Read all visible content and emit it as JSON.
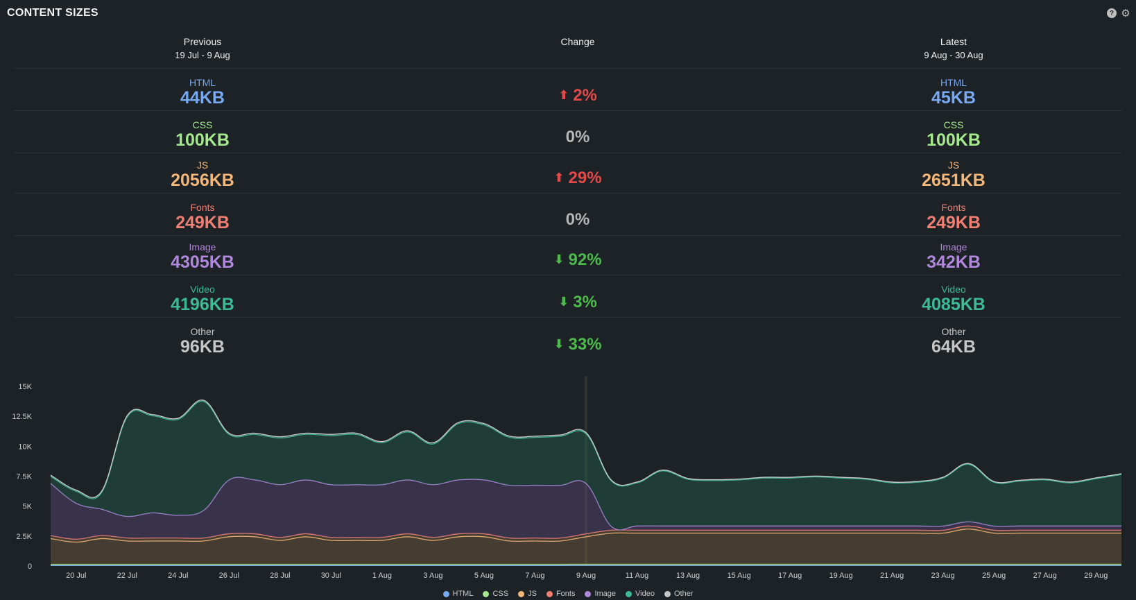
{
  "panel": {
    "title": "CONTENT SIZES",
    "help_icon": "help-icon",
    "settings_icon": "gear-icon"
  },
  "columns": {
    "previous": {
      "title": "Previous",
      "range": "19 Jul - 9 Aug"
    },
    "change": {
      "title": "Change"
    },
    "latest": {
      "title": "Latest",
      "range": "9 Aug - 30 Aug"
    }
  },
  "metrics": [
    {
      "label": "HTML",
      "color": "#78a8f0",
      "previous": "44KB",
      "latest": "45KB",
      "change": "2%",
      "direction": "up"
    },
    {
      "label": "CSS",
      "color": "#a5e88e",
      "previous": "100KB",
      "latest": "100KB",
      "change": "0%",
      "direction": "none"
    },
    {
      "label": "JS",
      "color": "#f4b77a",
      "previous": "2056KB",
      "latest": "2651KB",
      "change": "29%",
      "direction": "up"
    },
    {
      "label": "Fonts",
      "color": "#f07f72",
      "previous": "249KB",
      "latest": "249KB",
      "change": "0%",
      "direction": "none"
    },
    {
      "label": "Image",
      "color": "#b088dc",
      "previous": "4305KB",
      "latest": "342KB",
      "change": "92%",
      "direction": "down"
    },
    {
      "label": "Video",
      "color": "#3dbb96",
      "previous": "4196KB",
      "latest": "4085KB",
      "change": "3%",
      "direction": "down"
    },
    {
      "label": "Other",
      "color": "#c6c6c6",
      "previous": "96KB",
      "latest": "64KB",
      "change": "33%",
      "direction": "down"
    }
  ],
  "change_colors": {
    "up": "#e24a4a",
    "down": "#4cbb4c",
    "none": "#b5b5b5"
  },
  "chart_data": {
    "type": "area",
    "stacked": true,
    "x": [
      "19 Jul",
      "20 Jul",
      "21 Jul",
      "22 Jul",
      "23 Jul",
      "24 Jul",
      "25 Jul",
      "26 Jul",
      "27 Jul",
      "28 Jul",
      "29 Jul",
      "30 Jul",
      "31 Jul",
      "1 Aug",
      "2 Aug",
      "3 Aug",
      "4 Aug",
      "5 Aug",
      "6 Aug",
      "7 Aug",
      "8 Aug",
      "9 Aug",
      "10 Aug",
      "11 Aug",
      "12 Aug",
      "13 Aug",
      "14 Aug",
      "15 Aug",
      "16 Aug",
      "17 Aug",
      "18 Aug",
      "19 Aug",
      "20 Aug",
      "21 Aug",
      "22 Aug",
      "23 Aug",
      "24 Aug",
      "25 Aug",
      "26 Aug",
      "27 Aug",
      "28 Aug",
      "29 Aug",
      "30 Aug"
    ],
    "x_tick_labels": [
      "20 Jul",
      "22 Jul",
      "24 Jul",
      "26 Jul",
      "28 Jul",
      "30 Jul",
      "1 Aug",
      "3 Aug",
      "5 Aug",
      "7 Aug",
      "9 Aug",
      "11 Aug",
      "13 Aug",
      "15 Aug",
      "17 Aug",
      "19 Aug",
      "21 Aug",
      "23 Aug",
      "25 Aug",
      "27 Aug",
      "29 Aug"
    ],
    "y_tick_labels": [
      "0",
      "2.5K",
      "5K",
      "7.5K",
      "10K",
      "12.5K",
      "15K"
    ],
    "ylim": [
      0,
      15000
    ],
    "marker_date": "9 Aug",
    "grid": false,
    "legend_position": "bottom",
    "series": [
      {
        "name": "HTML",
        "color": "#78a8f0",
        "values": [
          44,
          44,
          44,
          44,
          44,
          44,
          44,
          44,
          44,
          44,
          44,
          44,
          44,
          44,
          44,
          44,
          44,
          44,
          44,
          44,
          44,
          45,
          45,
          45,
          45,
          45,
          45,
          45,
          45,
          45,
          45,
          45,
          45,
          45,
          45,
          45,
          45,
          45,
          45,
          45,
          45,
          45,
          45
        ]
      },
      {
        "name": "CSS",
        "color": "#a5e88e",
        "values": [
          100,
          100,
          100,
          100,
          100,
          100,
          100,
          100,
          100,
          100,
          100,
          100,
          100,
          100,
          100,
          100,
          100,
          100,
          100,
          100,
          100,
          100,
          100,
          100,
          100,
          100,
          100,
          100,
          100,
          100,
          100,
          100,
          100,
          100,
          100,
          100,
          100,
          100,
          100,
          100,
          100,
          100,
          100
        ]
      },
      {
        "name": "JS",
        "color": "#f4b77a",
        "values": [
          2150,
          1850,
          2150,
          1950,
          1950,
          1950,
          1950,
          2300,
          2300,
          2000,
          2300,
          2000,
          2000,
          2000,
          2300,
          2000,
          2300,
          2300,
          1950,
          1950,
          1950,
          2300,
          2600,
          2600,
          2600,
          2600,
          2600,
          2600,
          2600,
          2600,
          2600,
          2600,
          2600,
          2600,
          2600,
          2600,
          2950,
          2600,
          2600,
          2600,
          2600,
          2600,
          2600
        ]
      },
      {
        "name": "Fonts",
        "color": "#f07f72",
        "values": [
          249,
          249,
          249,
          249,
          249,
          249,
          249,
          249,
          249,
          249,
          249,
          249,
          249,
          249,
          249,
          249,
          249,
          249,
          249,
          249,
          249,
          249,
          249,
          249,
          249,
          249,
          249,
          249,
          249,
          249,
          249,
          249,
          249,
          249,
          249,
          249,
          249,
          249,
          249,
          249,
          249,
          249,
          249
        ]
      },
      {
        "name": "Image",
        "color": "#b088dc",
        "values": [
          4350,
          3000,
          2200,
          1800,
          2100,
          1900,
          2300,
          4500,
          4500,
          4400,
          4500,
          4400,
          4400,
          4400,
          4500,
          4400,
          4500,
          4500,
          4400,
          4400,
          4400,
          4200,
          300,
          350,
          350,
          350,
          350,
          350,
          350,
          350,
          350,
          350,
          350,
          350,
          350,
          350,
          350,
          350,
          350,
          350,
          350,
          350,
          350
        ]
      },
      {
        "name": "Video",
        "color": "#3dbb96",
        "values": [
          600,
          1000,
          1400,
          8300,
          8100,
          8000,
          9100,
          3800,
          3800,
          3900,
          3800,
          4100,
          4200,
          3500,
          4000,
          3400,
          4700,
          4600,
          4000,
          4000,
          4100,
          4150,
          3800,
          3600,
          4600,
          3900,
          3800,
          3850,
          4000,
          4000,
          4100,
          4000,
          3900,
          3600,
          3650,
          4000,
          4800,
          3650,
          3750,
          3850,
          3600,
          3950,
          4300
        ]
      },
      {
        "name": "Other",
        "color": "#c6c6c6",
        "values": [
          96,
          96,
          96,
          96,
          96,
          96,
          96,
          96,
          96,
          96,
          96,
          96,
          96,
          96,
          96,
          96,
          96,
          96,
          96,
          96,
          96,
          96,
          64,
          64,
          64,
          64,
          64,
          64,
          64,
          64,
          64,
          64,
          64,
          64,
          64,
          64,
          64,
          64,
          64,
          64,
          64,
          64,
          64
        ]
      }
    ]
  }
}
